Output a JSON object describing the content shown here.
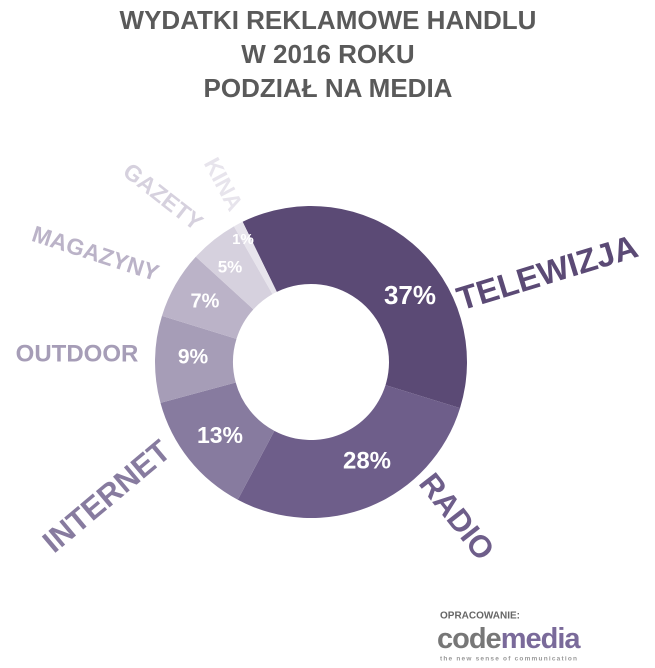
{
  "chart_data": {
    "type": "donut",
    "title": [
      "WYDATKI REKLAMOWE HANDLU",
      "W 2016 ROKU",
      "PODZIAŁ NA MEDIA"
    ],
    "categories": [
      "TELEWIZJA",
      "RADIO",
      "INTERNET",
      "OUTDOOR",
      "MAGAZYNY",
      "GAZETY",
      "KINA"
    ],
    "values": [
      37,
      28,
      13,
      9,
      7,
      5,
      1
    ],
    "value_labels": [
      "37%",
      "28%",
      "13%",
      "9%",
      "7%",
      "5%",
      "1%"
    ],
    "colors": [
      "#5b4a75",
      "#6e5e8a",
      "#877b9f",
      "#a69db7",
      "#bbb3c8",
      "#d6d1de",
      "#e7e4ec"
    ]
  },
  "footer": {
    "credit": "OPRACOWANIE:",
    "logo_code": "code",
    "logo_media": "media",
    "tagline": "the new sense of communication"
  }
}
